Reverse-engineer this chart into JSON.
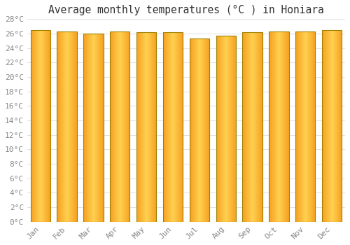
{
  "title": "Average monthly temperatures (°C ) in Honiara",
  "months": [
    "Jan",
    "Feb",
    "Mar",
    "Apr",
    "May",
    "Jun",
    "Jul",
    "Aug",
    "Sep",
    "Oct",
    "Nov",
    "Dec"
  ],
  "values": [
    26.5,
    26.3,
    26.0,
    26.3,
    26.2,
    26.2,
    25.3,
    25.7,
    26.2,
    26.3,
    26.3,
    26.5
  ],
  "bar_color_center": "#FFD050",
  "bar_color_edge": "#F5A020",
  "bar_border_color": "#A08000",
  "ylim": [
    0,
    28
  ],
  "ytick_step": 2,
  "background_color": "#ffffff",
  "grid_color": "#e0e0e8",
  "title_fontsize": 10.5,
  "tick_fontsize": 8,
  "font_family": "monospace"
}
